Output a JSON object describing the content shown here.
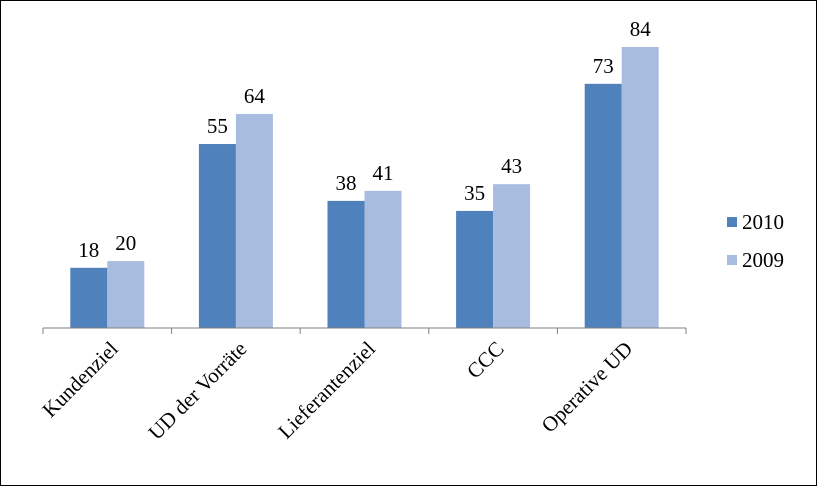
{
  "chart_data": {
    "type": "bar",
    "title": "",
    "xlabel": "",
    "ylabel": "",
    "categories": [
      "Kundenziel",
      "UD der Vorräte",
      "Lieferantenziel",
      "CCC",
      "Operative UD"
    ],
    "series": [
      {
        "name": "2010",
        "values": [
          18,
          55,
          38,
          35,
          73
        ],
        "color": "#4F81BD"
      },
      {
        "name": "2009",
        "values": [
          20,
          64,
          41,
          43,
          84
        ],
        "color": "#A7BCDE"
      }
    ],
    "ylim": [
      0,
      90
    ],
    "grid": false,
    "legend_position": "right",
    "data_labels": true
  }
}
